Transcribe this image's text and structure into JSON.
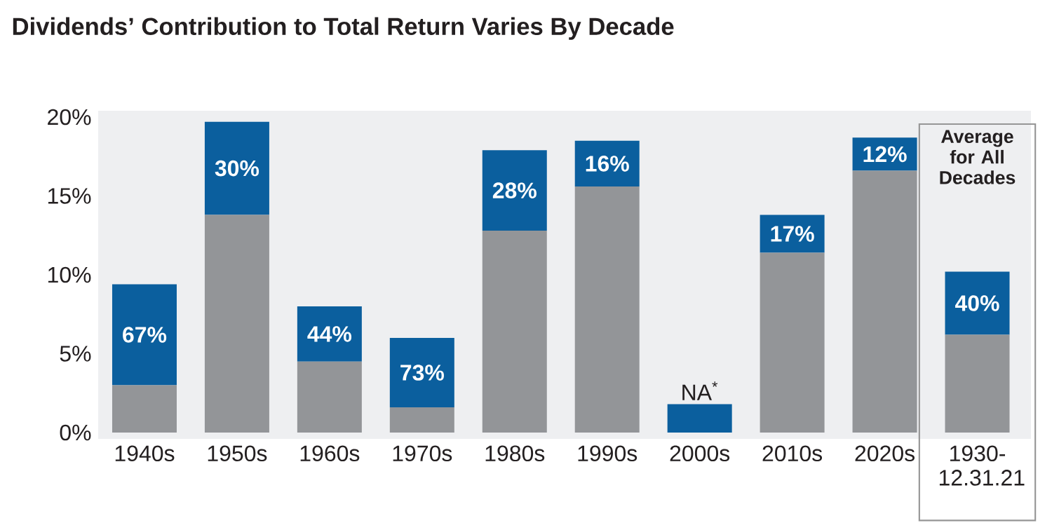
{
  "chart_data": {
    "type": "bar",
    "stacked": true,
    "title": "Dividends’ Contribution to Total Return Varies By Decade",
    "categories": [
      "1940s",
      "1950s",
      "1960s",
      "1970s",
      "1980s",
      "1990s",
      "2000s",
      "2010s",
      "2020s",
      "1930-12.31.21"
    ],
    "series": [
      {
        "color": "#939598",
        "values": [
          3.0,
          13.8,
          4.5,
          1.6,
          12.8,
          15.6,
          null,
          11.4,
          16.6,
          6.2
        ]
      },
      {
        "color": "#0b5f9e",
        "values": [
          6.4,
          5.9,
          3.5,
          4.4,
          5.1,
          2.9,
          1.8,
          2.4,
          2.1,
          4.0
        ]
      }
    ],
    "ylim": [
      -0.4,
      20.4
    ],
    "yticks": [
      {
        "value": 0,
        "label": "0%"
      },
      {
        "value": 5,
        "label": "5%"
      },
      {
        "value": 10,
        "label": "10%"
      },
      {
        "value": 15,
        "label": "15%"
      },
      {
        "value": 20,
        "label": "20%"
      }
    ],
    "annotations": [
      {
        "text": "67%",
        "x": "1940s",
        "y": 9.4
      },
      {
        "text": "30%",
        "x": "1950s",
        "y": 19.7
      },
      {
        "text": "44%",
        "x": "1960s",
        "y": 8.0
      },
      {
        "text": "73%",
        "x": "1970s",
        "y": 6.0
      },
      {
        "text": "28%",
        "x": "1980s",
        "y": 17.9
      },
      {
        "text": "16%",
        "x": "1990s",
        "y": 18.5
      },
      {
        "text": "NA$^{*}$",
        "x": "2000s",
        "y": 1.8
      },
      {
        "text": "17%",
        "x": "2010s",
        "y": 13.8
      },
      {
        "text": "12%",
        "x": "2020s",
        "y": 18.7
      },
      {
        "text": "40%",
        "x": "1930-12.31.21",
        "y": 10.2
      },
      "Average for All Decades"
    ],
    "grid": false
  }
}
